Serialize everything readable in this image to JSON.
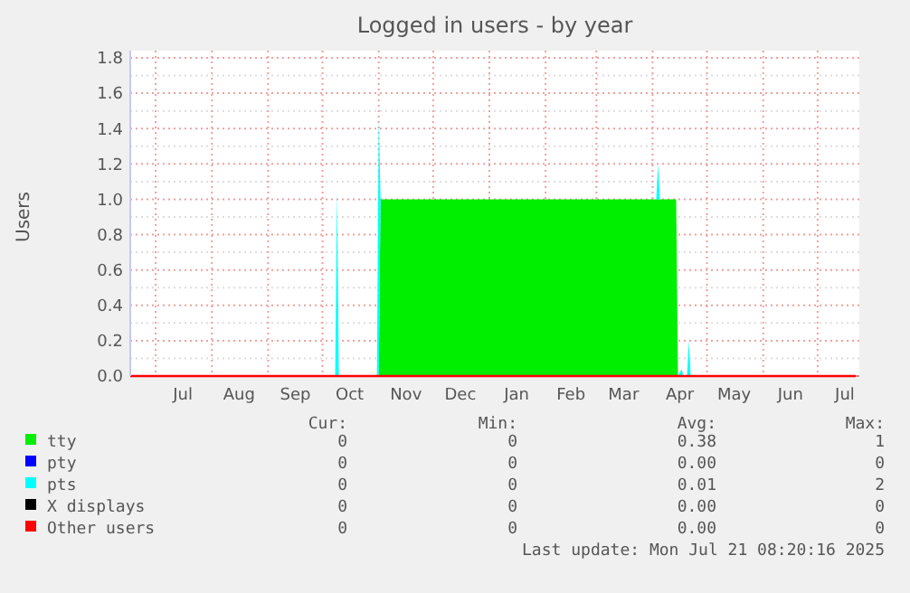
{
  "chart_data": {
    "type": "area",
    "title": "Logged in users - by year",
    "ylabel": "Users",
    "stacked": true,
    "grid": true,
    "legend": "bottom",
    "x": [
      "2024-06-17",
      "2024-10-08",
      "2024-10-09",
      "2024-10-10",
      "2024-10-31",
      "2024-11-01",
      "2024-11-02",
      "2025-04-03",
      "2025-04-04",
      "2025-04-05",
      "2025-04-14",
      "2025-04-15",
      "2025-04-17",
      "2025-04-18",
      "2025-04-20",
      "2025-04-21",
      "2025-04-22",
      "2025-07-22"
    ],
    "xlim": [
      "2024-06-17",
      "2025-07-24"
    ],
    "xticks": [
      {
        "value": "2024-07-01",
        "label": null
      },
      {
        "value": "2024-07-16",
        "label": "Jul"
      },
      {
        "value": "2024-08-01",
        "label": null
      },
      {
        "value": "2024-08-16",
        "label": "Aug"
      },
      {
        "value": "2024-09-01",
        "label": null
      },
      {
        "value": "2024-09-16",
        "label": "Sep"
      },
      {
        "value": "2024-10-01",
        "label": null
      },
      {
        "value": "2024-10-16",
        "label": "Oct"
      },
      {
        "value": "2024-11-01",
        "label": null
      },
      {
        "value": "2024-11-16",
        "label": "Nov"
      },
      {
        "value": "2024-12-01",
        "label": null
      },
      {
        "value": "2024-12-16",
        "label": "Dec"
      },
      {
        "value": "2025-01-01",
        "label": null
      },
      {
        "value": "2025-01-16",
        "label": "Jan"
      },
      {
        "value": "2025-02-01",
        "label": null
      },
      {
        "value": "2025-02-15",
        "label": "Feb"
      },
      {
        "value": "2025-03-01",
        "label": null
      },
      {
        "value": "2025-03-16",
        "label": "Mar"
      },
      {
        "value": "2025-04-01",
        "label": null
      },
      {
        "value": "2025-04-16",
        "label": "Apr"
      },
      {
        "value": "2025-05-01",
        "label": null
      },
      {
        "value": "2025-05-16",
        "label": "May"
      },
      {
        "value": "2025-06-01",
        "label": null
      },
      {
        "value": "2025-06-16",
        "label": "Jun"
      },
      {
        "value": "2025-07-01",
        "label": null
      },
      {
        "value": "2025-07-16",
        "label": "Jul"
      }
    ],
    "ylim": [
      0,
      1.8
    ],
    "yticks": [
      {
        "value": 0,
        "label": "0.0"
      },
      {
        "value": 0.1,
        "label": null
      },
      {
        "value": 0.2,
        "label": "0.2"
      },
      {
        "value": 0.3,
        "label": null
      },
      {
        "value": 0.4,
        "label": "0.4"
      },
      {
        "value": 0.5,
        "label": null
      },
      {
        "value": 0.6,
        "label": "0.6"
      },
      {
        "value": 0.7,
        "label": null
      },
      {
        "value": 0.8,
        "label": "0.8"
      },
      {
        "value": 0.9,
        "label": null
      },
      {
        "value": 1.0,
        "label": "1.0"
      },
      {
        "value": 1.1,
        "label": null
      },
      {
        "value": 1.2,
        "label": "1.2"
      },
      {
        "value": 1.3,
        "label": null
      },
      {
        "value": 1.4,
        "label": "1.4"
      },
      {
        "value": 1.5,
        "label": null
      },
      {
        "value": 1.6,
        "label": "1.6"
      },
      {
        "value": 1.7,
        "label": null
      },
      {
        "value": 1.8,
        "label": "1.8"
      }
    ],
    "series": [
      {
        "name": "tty",
        "color": "#00ee00",
        "values": [
          0,
          0,
          0,
          0,
          0,
          0,
          1,
          1,
          1,
          1,
          1,
          0,
          0,
          0,
          0,
          0,
          0,
          0
        ]
      },
      {
        "name": "pty",
        "type": "line",
        "color": "#0000ff",
        "values": [
          null,
          null,
          null,
          null,
          null,
          null,
          null,
          null,
          null,
          null,
          null,
          null,
          null,
          null,
          null,
          null,
          null,
          null
        ]
      },
      {
        "name": "pts",
        "color": "#00ffff",
        "values": [
          0,
          0,
          1.05,
          0,
          0,
          1.45,
          0,
          0,
          0.2,
          0,
          0,
          0,
          0.04,
          0,
          0,
          0.2,
          0,
          0
        ]
      },
      {
        "name": "X displays",
        "type": "line",
        "color": "#000000",
        "values": [
          null,
          null,
          null,
          null,
          null,
          null,
          null,
          null,
          null,
          null,
          null,
          null,
          null,
          null,
          null,
          null,
          null,
          null
        ]
      },
      {
        "name": "Other users",
        "type": "line",
        "color": "#ff0000",
        "values": [
          0,
          0,
          0,
          0,
          0,
          0,
          0,
          0,
          0,
          0,
          0,
          0,
          0,
          0,
          0,
          0,
          0,
          0
        ]
      }
    ],
    "annotations": [
      "Cur:",
      "Min:",
      "Avg:",
      "Max:",
      "0",
      "0",
      "0.38",
      "1",
      "0",
      "0",
      "0.00",
      "0",
      "0",
      "0",
      "0.01",
      "2",
      "0",
      "0",
      "0.00",
      "0",
      "0",
      "0",
      "0.00",
      "0",
      "Last update: Mon Jul 21 08:20:16 2025"
    ]
  }
}
